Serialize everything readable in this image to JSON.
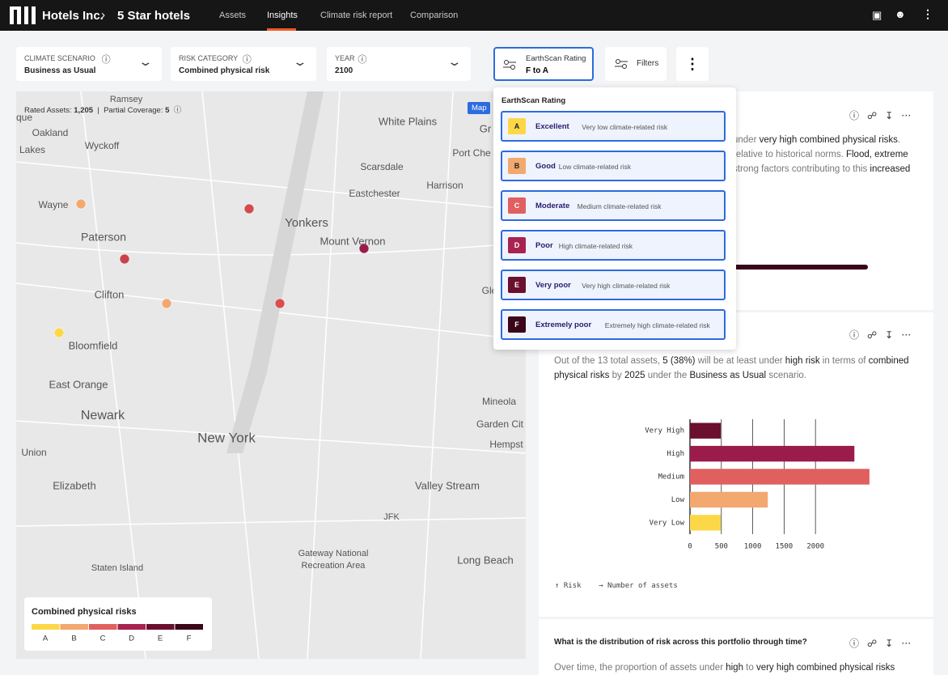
{
  "header": {
    "brand": "Hotels Inc.",
    "portfolio": "5 Star hotels",
    "nav": [
      "Assets",
      "Insights",
      "Climate risk report",
      "Comparison"
    ],
    "active_nav": 1
  },
  "filters": [
    {
      "label": "CLIMATE SCENARIO",
      "value": "Business as Usual"
    },
    {
      "label": "RISK CATEGORY",
      "value": "Combined physical risk"
    },
    {
      "label": "YEAR",
      "value": "2100"
    }
  ],
  "rating_filter": {
    "label": "EarthScan Rating",
    "value": "F to A"
  },
  "filters_button": "Filters",
  "map": {
    "rated_label": "Rated Assets:",
    "rated_value": "1,205",
    "coverage_label": "Partial Coverage:",
    "coverage_value": "5",
    "map_button": "Map",
    "places": [
      "Ramsey",
      "Oakland",
      "Wyckoff",
      "Lakes",
      "White Plains",
      "Port Che",
      "Scarsdale",
      "Harrison",
      "Eastchester",
      "Yonkers",
      "Wayne",
      "Paterson",
      "Mount Vernon",
      "Clifton",
      "Bloomfield",
      "East Orange",
      "Newark",
      "New York",
      "Union",
      "Elizabeth",
      "Valley Stream",
      "JFK",
      "Mineola",
      "Garden Cit",
      "Hempst",
      "Gateway National",
      "Recreation Area",
      "Long Beach",
      "Staten Island",
      "Gle",
      "Gr",
      "que"
    ],
    "legend": {
      "title": "Combined physical risks",
      "grades": [
        "A",
        "B",
        "C",
        "D",
        "E",
        "F"
      ],
      "colors": [
        "#fcd848",
        "#f2a86f",
        "#e06060",
        "#a8234f",
        "#6b0f2e",
        "#3a0618"
      ]
    }
  },
  "dropdown": {
    "title": "EarthScan Rating",
    "options": [
      {
        "grade": "A",
        "label": "Excellent",
        "description": "Very low climate-related risk",
        "color": "#fcd848"
      },
      {
        "grade": "B",
        "label": "Good",
        "description": "Low climate-related risk",
        "color": "#f2a86f"
      },
      {
        "grade": "C",
        "label": "Moderate",
        "description": "Medium climate-related risk",
        "color": "#e06060"
      },
      {
        "grade": "D",
        "label": "Poor",
        "description": "High climate-related risk",
        "color": "#a8234f"
      },
      {
        "grade": "E",
        "label": "Very poor",
        "description": "Very high climate-related risk",
        "color": "#6b0f2e"
      },
      {
        "grade": "F",
        "label": "Extremely poor",
        "description": "Extremely high climate-related risk",
        "color": "#3a0618"
      }
    ]
  },
  "cards": [
    {
      "segments": [
        "under ",
        "very high combined physical risks",
        ". relative to historical norms. ",
        "Flood, extreme",
        " strong factors contributing to this ",
        "increased"
      ]
    },
    {
      "segments": [
        "Out of the 13 total assets, ",
        "5 (38%)",
        " will be at least under ",
        "high risk",
        " in terms of ",
        "combined physical risks",
        " by ",
        "2025",
        " under the ",
        "Business as Usual",
        " scenario."
      ]
    },
    {
      "title": "What is the distribution of risk across this portfolio through time?",
      "segments": [
        "Over time, the proportion of assets under ",
        "high",
        " to ",
        "very high combined physical risks"
      ]
    }
  ],
  "chart_data": {
    "type": "bar",
    "orientation": "horizontal",
    "categories": [
      "Very High",
      "High",
      "Medium",
      "Low",
      "Very Low"
    ],
    "values": [
      490,
      2620,
      2860,
      1240,
      490
    ],
    "colors": [
      "#6b0f2e",
      "#9b1c4b",
      "#e06060",
      "#f2a86f",
      "#fcd848"
    ],
    "xlim": [
      0,
      2900
    ],
    "xticks": [
      0,
      500,
      1000,
      1500,
      2000
    ],
    "grid": true,
    "y_label": "Risk",
    "x_label": "Number of assets"
  }
}
